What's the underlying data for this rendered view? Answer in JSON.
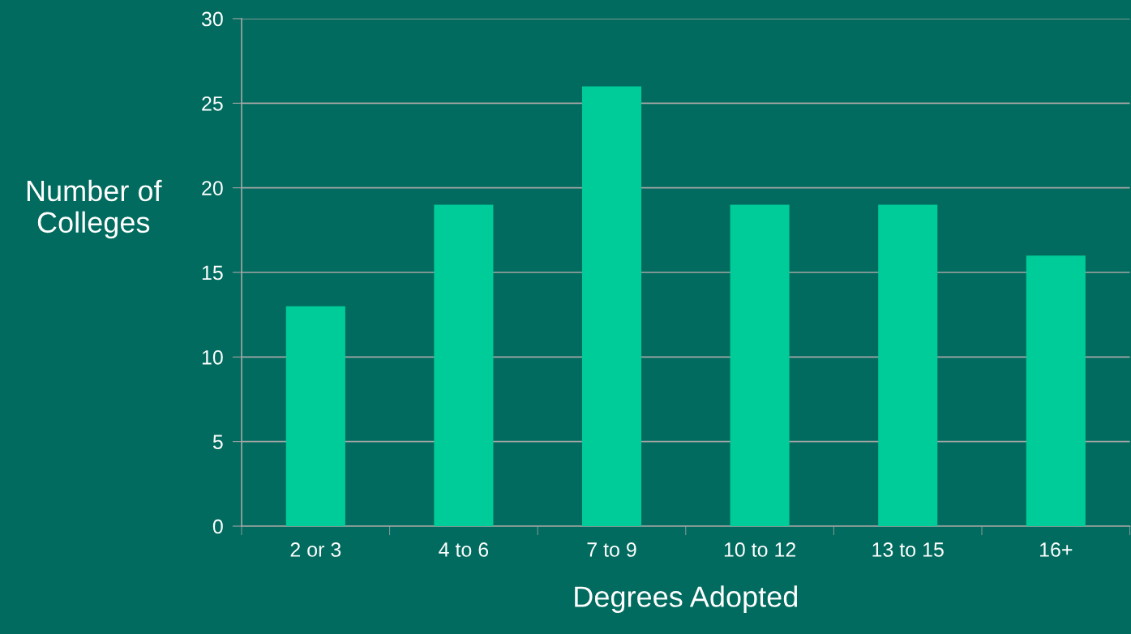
{
  "chart_data": {
    "type": "bar",
    "xlabel": "Degrees Adopted",
    "ylabel": "Number of\nColleges",
    "categories": [
      "2 or 3",
      "4 to 6",
      "7 to 9",
      "10 to 12",
      "13 to 15",
      "16+"
    ],
    "values": [
      13,
      19,
      26,
      19,
      19,
      16
    ],
    "color": "#00cc99",
    "ylim": [
      0,
      30
    ],
    "yticks": [
      0,
      5,
      10,
      15,
      20,
      25,
      30
    ],
    "grid": "y"
  }
}
